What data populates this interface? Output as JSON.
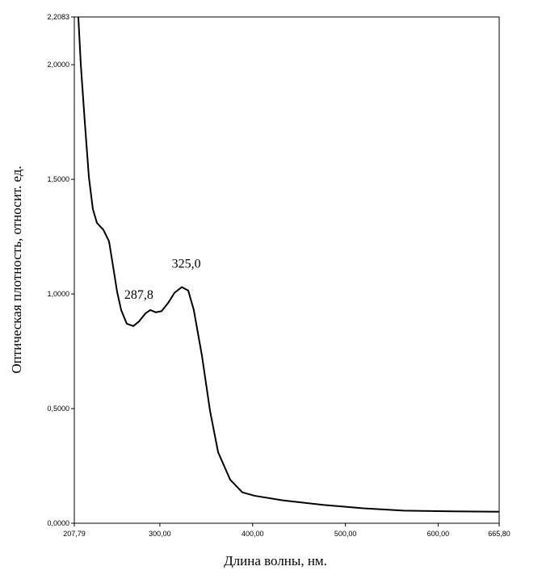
{
  "chart_data": {
    "type": "line",
    "xlabel": "Длина волны, нм.",
    "ylabel": "Оптическая плотность, относит. ед.",
    "xlim": [
      207.79,
      665.8
    ],
    "ylim": [
      0,
      2.2083
    ],
    "xticks": [
      {
        "value": 207.79,
        "label": "207,79"
      },
      {
        "value": 300,
        "label": "300,00"
      },
      {
        "value": 400,
        "label": "400,00"
      },
      {
        "value": 500,
        "label": "500,00"
      },
      {
        "value": 600,
        "label": "600,00"
      },
      {
        "value": 665.8,
        "label": "665,80"
      }
    ],
    "yticks": [
      {
        "value": 0,
        "label": "0,0000"
      },
      {
        "value": 0.5,
        "label": "0,5000"
      },
      {
        "value": 1,
        "label": "1,0000"
      },
      {
        "value": 1.5,
        "label": "1,5000"
      },
      {
        "value": 2,
        "label": "2,0000"
      },
      {
        "value": 2.2083,
        "label": "2,2083"
      }
    ],
    "series": [
      {
        "color": "#000000",
        "x": [
          212.1,
          214.8,
          219.1,
          223.5,
          227.8,
          232.2,
          239.1,
          245.2,
          249.6,
          253.9,
          258.3,
          264.4,
          271.4,
          277.5,
          284.4,
          289.7,
          295.7,
          301.8,
          308.8,
          315.8,
          323.6,
          330.6,
          336.6,
          345.4,
          354.1,
          362.8,
          375.8,
          388.9,
          402,
          432.4,
          475.9,
          519.5,
          563,
          615.3,
          665.8
        ],
        "values": [
          2.21,
          2.0,
          1.75,
          1.51,
          1.37,
          1.31,
          1.28,
          1.23,
          1.12,
          1.01,
          0.93,
          0.87,
          0.86,
          0.88,
          0.915,
          0.93,
          0.92,
          0.925,
          0.96,
          1.005,
          1.03,
          1.015,
          0.93,
          0.73,
          0.49,
          0.31,
          0.19,
          0.135,
          0.12,
          0.1,
          0.08,
          0.065,
          0.055,
          0.052,
          0.05
        ]
      }
    ],
    "annotations": [
      {
        "text": "287,8",
        "x": 287.8,
        "y": 0.93
      },
      {
        "text": "325,0",
        "x": 325.0,
        "y": 1.03
      }
    ]
  }
}
